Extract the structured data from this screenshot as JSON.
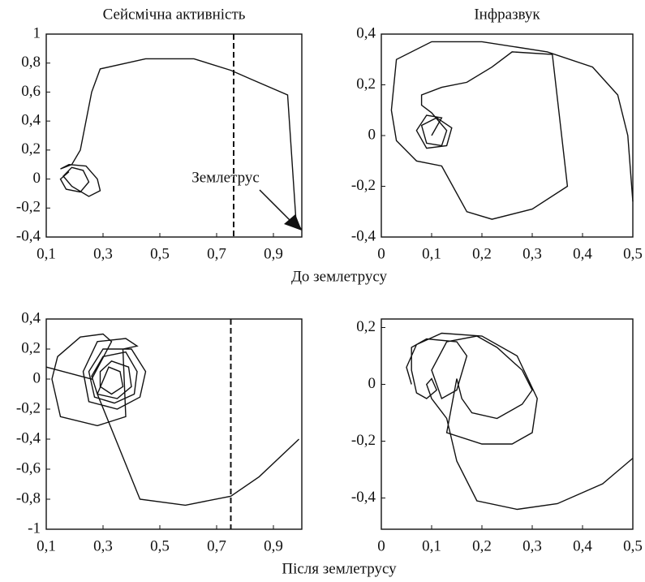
{
  "chart_data": [
    {
      "type": "line",
      "title": "Сейсмічна активність",
      "xlabel": "До землетрусу",
      "annotation": "Землетрус",
      "color": "#111111",
      "vline": 0.76,
      "x": [
        0.18,
        0.15,
        0.17,
        0.22,
        0.25,
        0.23,
        0.19,
        0.16,
        0.19,
        0.25,
        0.29,
        0.28,
        0.24,
        0.18,
        0.15,
        0.19,
        0.22,
        0.24,
        0.26,
        0.29,
        0.45,
        0.62,
        0.75,
        0.82,
        0.95,
        0.98,
        1.0
      ],
      "values": [
        0.05,
        0.0,
        -0.07,
        -0.09,
        -0.02,
        0.06,
        0.08,
        0.02,
        -0.05,
        -0.12,
        -0.08,
        0.0,
        0.09,
        0.1,
        0.07,
        0.1,
        0.2,
        0.4,
        0.6,
        0.76,
        0.83,
        0.83,
        0.75,
        0.69,
        0.58,
        -0.3,
        -0.35
      ],
      "xlim": [
        0.1,
        1.0
      ],
      "ylim": [
        -0.4,
        1
      ],
      "xticks": [
        {
          "value": 0.1,
          "label": "0,1"
        },
        {
          "value": 0.3,
          "label": "0,3"
        },
        {
          "value": 0.5,
          "label": "0,5"
        },
        {
          "value": 0.7,
          "label": "0,7"
        },
        {
          "value": 0.9,
          "label": "0,9"
        }
      ],
      "yticks": [
        1,
        {
          "value": 0.8,
          "label": "0,8"
        },
        {
          "value": 0.6,
          "label": "0,6"
        },
        {
          "value": 0.4,
          "label": "0,4"
        },
        {
          "value": 0.2,
          "label": "0,2"
        },
        0,
        {
          "value": -0.2,
          "label": "-0,2"
        },
        {
          "value": -0.4,
          "label": "-0,4"
        }
      ]
    },
    {
      "type": "line",
      "title": "Інфразвук",
      "color": "#111111",
      "x": [
        0.1,
        0.12,
        0.09,
        0.07,
        0.09,
        0.13,
        0.14,
        0.11,
        0.08,
        0.09,
        0.12,
        0.13,
        0.1,
        0.08,
        0.08,
        0.12,
        0.17,
        0.22,
        0.26,
        0.34,
        0.37,
        0.3,
        0.22,
        0.17,
        0.12,
        0.07,
        0.03,
        0.02,
        0.03,
        0.1,
        0.2,
        0.33,
        0.42,
        0.47,
        0.49,
        0.5
      ],
      "values": [
        0.0,
        0.07,
        0.08,
        0.02,
        -0.05,
        -0.04,
        0.03,
        0.07,
        0.04,
        -0.03,
        -0.04,
        0.02,
        0.09,
        0.12,
        0.16,
        0.19,
        0.21,
        0.27,
        0.33,
        0.32,
        -0.2,
        -0.29,
        -0.33,
        -0.3,
        -0.12,
        -0.1,
        -0.02,
        0.1,
        0.3,
        0.37,
        0.37,
        0.33,
        0.27,
        0.16,
        0.0,
        -0.26
      ],
      "xlim": [
        0,
        0.5
      ],
      "ylim": [
        -0.4,
        0.4
      ],
      "xticks": [
        0,
        {
          "value": 0.1,
          "label": "0,1"
        },
        {
          "value": 0.2,
          "label": "0,2"
        },
        {
          "value": 0.3,
          "label": "0,3"
        },
        {
          "value": 0.4,
          "label": "0,4"
        },
        {
          "value": 0.5,
          "label": "0,5"
        }
      ],
      "yticks": [
        {
          "value": 0.4,
          "label": "0,4"
        },
        {
          "value": 0.2,
          "label": "0,2"
        },
        0,
        {
          "value": -0.2,
          "label": "-0,2"
        },
        {
          "value": -0.4,
          "label": "-0,4"
        }
      ]
    },
    {
      "type": "line",
      "xlabel": "Після землетрусу",
      "color": "#111111",
      "vline": 0.75,
      "x": [
        0.99,
        0.85,
        0.75,
        0.59,
        0.43,
        0.28,
        0.32,
        0.36,
        0.37,
        0.33,
        0.29,
        0.29,
        0.33,
        0.39,
        0.4,
        0.35,
        0.28,
        0.26,
        0.3,
        0.38,
        0.42,
        0.41,
        0.34,
        0.27,
        0.25,
        0.3,
        0.4,
        0.45,
        0.43,
        0.35,
        0.25,
        0.23,
        0.28,
        0.38,
        0.42,
        0.37,
        0.38,
        0.28,
        0.15,
        0.12,
        0.14,
        0.22,
        0.3,
        0.33,
        0.26,
        0.1
      ],
      "values": [
        -0.4,
        -0.65,
        -0.78,
        -0.84,
        -0.8,
        -0.1,
        0.08,
        0.05,
        -0.05,
        -0.1,
        -0.05,
        0.05,
        0.12,
        0.08,
        -0.05,
        -0.13,
        -0.1,
        0.02,
        0.15,
        0.18,
        0.05,
        -0.1,
        -0.16,
        -0.12,
        0.05,
        0.2,
        0.2,
        0.05,
        -0.12,
        -0.2,
        -0.15,
        0.05,
        0.25,
        0.27,
        0.22,
        0.2,
        -0.25,
        -0.31,
        -0.25,
        0.0,
        0.15,
        0.28,
        0.3,
        0.25,
        0.0,
        0.08
      ],
      "xlim": [
        0.1,
        1.0
      ],
      "ylim": [
        -1,
        0.4
      ],
      "xticks": [
        {
          "value": 0.1,
          "label": "0,1"
        },
        {
          "value": 0.3,
          "label": "0,3"
        },
        {
          "value": 0.5,
          "label": "0,5"
        },
        {
          "value": 0.7,
          "label": "0,7"
        },
        {
          "value": 0.9,
          "label": "0,9"
        }
      ],
      "yticks": [
        {
          "value": 0.4,
          "label": "0,4"
        },
        {
          "value": 0.2,
          "label": "0,2"
        },
        0,
        {
          "value": -0.2,
          "label": "-0,2"
        },
        {
          "value": -0.4,
          "label": "-0,4"
        },
        {
          "value": -0.6,
          "label": "-0,6"
        },
        {
          "value": -0.8,
          "label": "-0,8"
        },
        -1
      ]
    },
    {
      "type": "line",
      "color": "#111111",
      "x": [
        0.5,
        0.44,
        0.35,
        0.27,
        0.19,
        0.15,
        0.13,
        0.1,
        0.09,
        0.1,
        0.11,
        0.09,
        0.07,
        0.06,
        0.06,
        0.09,
        0.15,
        0.17,
        0.15,
        0.12,
        0.1,
        0.13,
        0.19,
        0.23,
        0.28,
        0.3,
        0.28,
        0.23,
        0.18,
        0.16,
        0.15,
        0.13,
        0.2,
        0.26,
        0.3,
        0.31,
        0.27,
        0.2,
        0.12,
        0.07,
        0.05,
        0.06
      ],
      "values": [
        -0.26,
        -0.35,
        -0.42,
        -0.44,
        -0.41,
        -0.27,
        -0.12,
        -0.05,
        0.0,
        0.02,
        -0.02,
        -0.05,
        -0.03,
        0.05,
        0.13,
        0.16,
        0.15,
        0.1,
        -0.02,
        -0.05,
        0.05,
        0.15,
        0.17,
        0.13,
        0.05,
        -0.02,
        -0.07,
        -0.12,
        -0.1,
        -0.05,
        0.02,
        -0.17,
        -0.21,
        -0.21,
        -0.17,
        -0.05,
        0.1,
        0.17,
        0.18,
        0.14,
        0.06,
        0.0
      ],
      "xlim": [
        0,
        0.5
      ],
      "ylim": [
        -0.51,
        0.23
      ],
      "xticks": [
        0,
        {
          "value": 0.1,
          "label": "0,1"
        },
        {
          "value": 0.2,
          "label": "0,2"
        },
        {
          "value": 0.3,
          "label": "0,3"
        },
        {
          "value": 0.4,
          "label": "0,4"
        },
        {
          "value": 0.5,
          "label": "0,5"
        }
      ],
      "yticks": [
        {
          "value": 0.2,
          "label": "0,2"
        },
        0,
        {
          "value": -0.2,
          "label": "-0,2"
        },
        {
          "value": -0.4,
          "label": "-0,4"
        }
      ]
    }
  ]
}
